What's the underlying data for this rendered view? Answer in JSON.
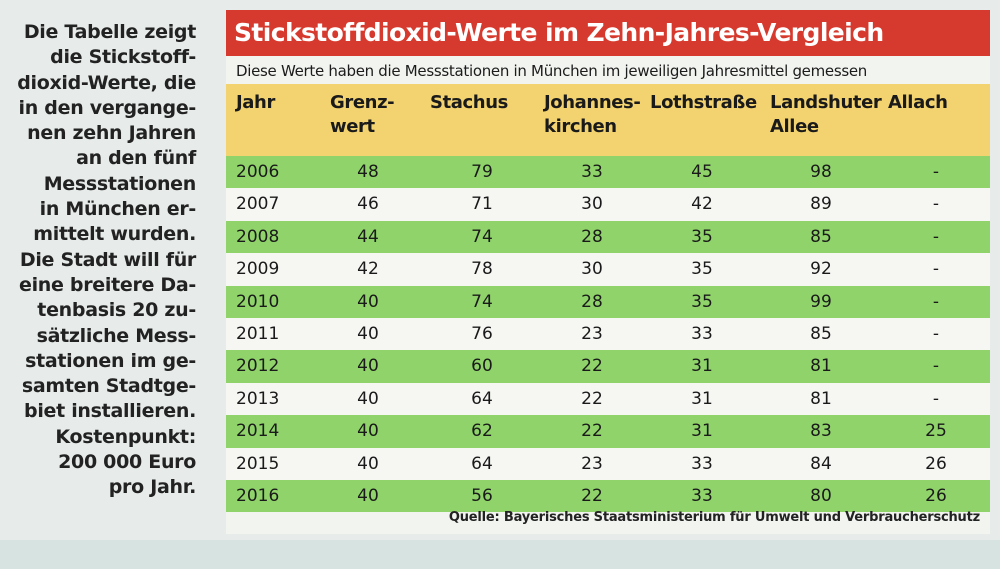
{
  "intro_text": "Die Tabelle zeigt\ndie Stickstoff-\ndioxid-Werte, die\nin den vergange-\nnen zehn Jahren\nan den fünf\nMessstationen\nin München er-\nmittelt wurden.\nDie Stadt will für\neine breitere Da-\ntenbasis 20 zu-\nsätzliche Mess-\nstationen im ge-\nsamten Stadtge-\nbiet installieren.\nKostenpunkt:\n200 000 Euro\npro Jahr.",
  "title": "Stickstoffdioxid-Werte im Zehn-Jahres-Vergleich",
  "subtitle": "Diese Werte haben die Messstationen in München im jeweiligen Jahresmittel gemessen",
  "columns": [
    "Jahr",
    "Grenz-\nwert",
    "Stachus",
    "Johannes-\nkirchen",
    "Lothstraße",
    "Landshuter\nAllee",
    "Allach"
  ],
  "rows": [
    [
      "2006",
      "48",
      "79",
      "33",
      "45",
      "98",
      "-"
    ],
    [
      "2007",
      "46",
      "71",
      "30",
      "42",
      "89",
      "-"
    ],
    [
      "2008",
      "44",
      "74",
      "28",
      "35",
      "85",
      "-"
    ],
    [
      "2009",
      "42",
      "78",
      "30",
      "35",
      "92",
      "-"
    ],
    [
      "2010",
      "40",
      "74",
      "28",
      "35",
      "99",
      "-"
    ],
    [
      "2011",
      "40",
      "76",
      "23",
      "33",
      "85",
      "-"
    ],
    [
      "2012",
      "40",
      "60",
      "22",
      "31",
      "81",
      "-"
    ],
    [
      "2013",
      "40",
      "64",
      "22",
      "31",
      "81",
      "-"
    ],
    [
      "2014",
      "40",
      "62",
      "22",
      "31",
      "83",
      "25"
    ],
    [
      "2015",
      "40",
      "64",
      "23",
      "33",
      "84",
      "26"
    ],
    [
      "2016",
      "40",
      "56",
      "22",
      "33",
      "80",
      "26"
    ]
  ],
  "source": "Quelle: Bayerisches Staatsministerium für Umwelt und Verbraucherschutz",
  "colors": {
    "title_bg": "#d63a2e",
    "header_bg": "#f3d36f",
    "row_green": "#8fd36a",
    "row_white": "#f6f7f3"
  }
}
